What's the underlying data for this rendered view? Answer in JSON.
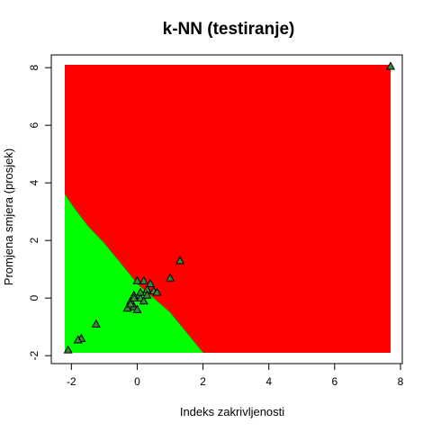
{
  "chart_data": {
    "type": "scatter",
    "title": "k-NN (testiranje)",
    "xlabel": "Indeks zakrivljenosti",
    "ylabel": "Promjena smjera (prosjek)",
    "xlim": [
      -2.2,
      7.7
    ],
    "ylim": [
      -1.9,
      8.1
    ],
    "x_ticks": [
      -2,
      0,
      2,
      4,
      6,
      8
    ],
    "y_ticks": [
      -2,
      0,
      2,
      4,
      6,
      8
    ],
    "grid": false,
    "legend": "none",
    "classes": [
      {
        "class": "green",
        "color": "#00ff00"
      },
      {
        "class": "red",
        "color": "#ff0000"
      }
    ],
    "decision_boundary": [
      [
        -2.2,
        3.6
      ],
      [
        -1.9,
        3.1
      ],
      [
        -1.5,
        2.5
      ],
      [
        -1.0,
        1.9
      ],
      [
        -0.5,
        1.2
      ],
      [
        0.0,
        0.5
      ],
      [
        0.5,
        0.0
      ],
      [
        1.0,
        -0.5
      ],
      [
        1.5,
        -1.2
      ],
      [
        2.0,
        -1.9
      ]
    ],
    "points": {
      "marker": "triangle",
      "fill": "#3a8a3a",
      "x": [
        7.7,
        1.3,
        1.0,
        0.4,
        0.3,
        0.5,
        0.6,
        0.2,
        0.0,
        -0.1,
        0.1,
        0.2,
        -0.2,
        -0.1,
        0.0,
        -0.3,
        -0.2,
        0.3,
        0.1,
        -0.1,
        -1.25,
        -1.7,
        -1.8,
        -2.1
      ],
      "y": [
        8.05,
        1.3,
        0.7,
        0.5,
        0.3,
        0.25,
        0.2,
        0.6,
        0.6,
        0.1,
        0.0,
        -0.1,
        -0.1,
        -0.3,
        -0.4,
        -0.35,
        -0.2,
        0.1,
        0.2,
        0.0,
        -0.9,
        -1.4,
        -1.45,
        -1.8
      ]
    }
  }
}
